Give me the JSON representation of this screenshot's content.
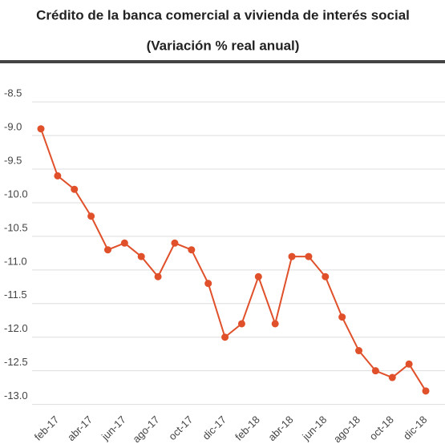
{
  "chart_data": {
    "type": "line",
    "title": "Crédito de la banca comercial a vivienda de interés social",
    "subtitle": "(Variación % real anual)",
    "categories": [
      null,
      "feb-17",
      null,
      "abr-17",
      null,
      "jun-17",
      null,
      "ago-17",
      null,
      "oct-17",
      null,
      "dic-17",
      null,
      "feb-18",
      null,
      "abr-18",
      null,
      "jun-18",
      null,
      "ago-18",
      null,
      "oct-18",
      null,
      "dic-18"
    ],
    "series": [
      {
        "name": "Variación % real anual",
        "color": "#e0502a",
        "values": [
          -8.9,
          -9.6,
          -9.8,
          -10.2,
          -10.7,
          -10.6,
          -10.8,
          -11.1,
          -10.6,
          -10.7,
          -11.2,
          -12.0,
          -11.8,
          -11.1,
          -11.8,
          -10.8,
          -10.8,
          -11.1,
          -11.7,
          -12.2,
          -12.5,
          -12.6,
          -12.4,
          -12.8
        ]
      }
    ],
    "ylim": [
      -13.1,
      -8.2
    ],
    "yticks": [
      -8.5,
      {
        "value": -9,
        "label": "-9.0"
      },
      -9.5,
      {
        "value": -10,
        "label": "-10.0"
      },
      -10.5,
      {
        "value": -11,
        "label": "-11.0"
      },
      -11.5,
      {
        "value": -12,
        "label": "-12.0"
      },
      -12.5,
      {
        "value": -13,
        "label": "-13.0"
      }
    ],
    "grid": true
  }
}
